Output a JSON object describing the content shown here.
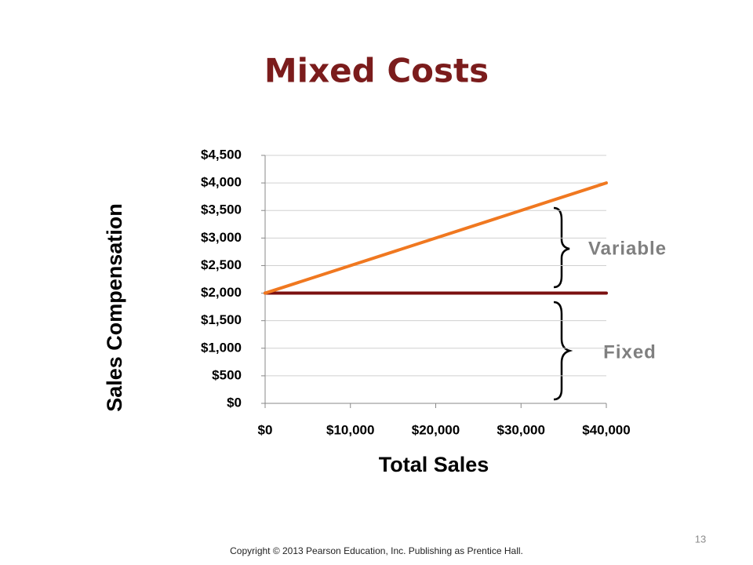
{
  "chart_data": {
    "type": "line",
    "title": "Mixed Costs",
    "x_label": "Total Sales",
    "y_label": "Sales Compensation",
    "x": [
      0,
      40000
    ],
    "series": [
      {
        "color": "#7b1010",
        "values": [
          2000,
          2000
        ]
      },
      {
        "color": "#f07820",
        "values": [
          2000,
          4000
        ]
      }
    ],
    "xlim": [
      0,
      40000
    ],
    "xticks": [
      {
        "value": 0,
        "label": "$0"
      },
      {
        "value": 10000,
        "label": "$10,000"
      },
      {
        "value": 20000,
        "label": "$20,000"
      },
      {
        "value": 30000,
        "label": "$30,000"
      },
      {
        "value": 40000,
        "label": "$40,000"
      }
    ],
    "ylim": [
      0,
      4500
    ],
    "yticks": [
      {
        "value": 0,
        "label": "$0"
      },
      {
        "value": 500,
        "label": "$500"
      },
      {
        "value": 1000,
        "label": "$1,000"
      },
      {
        "value": 1500,
        "label": "$1,500"
      },
      {
        "value": 2000,
        "label": "$2,000"
      },
      {
        "value": 2500,
        "label": "$2,500"
      },
      {
        "value": 3000,
        "label": "$3,000"
      },
      {
        "value": 3500,
        "label": "$3,500"
      },
      {
        "value": 4000,
        "label": "$4,000"
      },
      {
        "value": 4500,
        "label": "$4,500"
      }
    ],
    "grid": true,
    "annotations": [
      "Variable",
      "Fixed"
    ]
  },
  "slide": {
    "copyright": "Copyright © 2013 Pearson Education, Inc. Publishing as Prentice Hall.",
    "number": 13
  }
}
